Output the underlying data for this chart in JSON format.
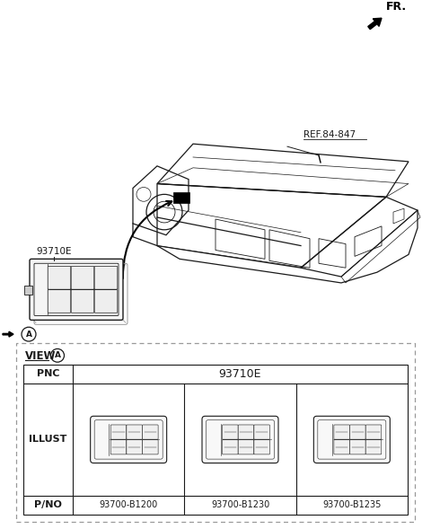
{
  "bg_color": "#ffffff",
  "line_color": "#1a1a1a",
  "gray_color": "#aaaaaa",
  "fig_width": 4.8,
  "fig_height": 5.89,
  "dpi": 100,
  "fr_label": "FR.",
  "ref_label": "REF.84-847",
  "part_label_main": "93710E",
  "circle_label": "A",
  "table": {
    "view_label": "VIEW",
    "circle_view": "A",
    "pnc_value": "93710E",
    "pno_values": [
      "93700-B1200",
      "93700-B1230",
      "93700-B1235"
    ]
  },
  "diagram": {
    "dash_color": "#2a2a2a",
    "arrow_color": "#000000"
  }
}
